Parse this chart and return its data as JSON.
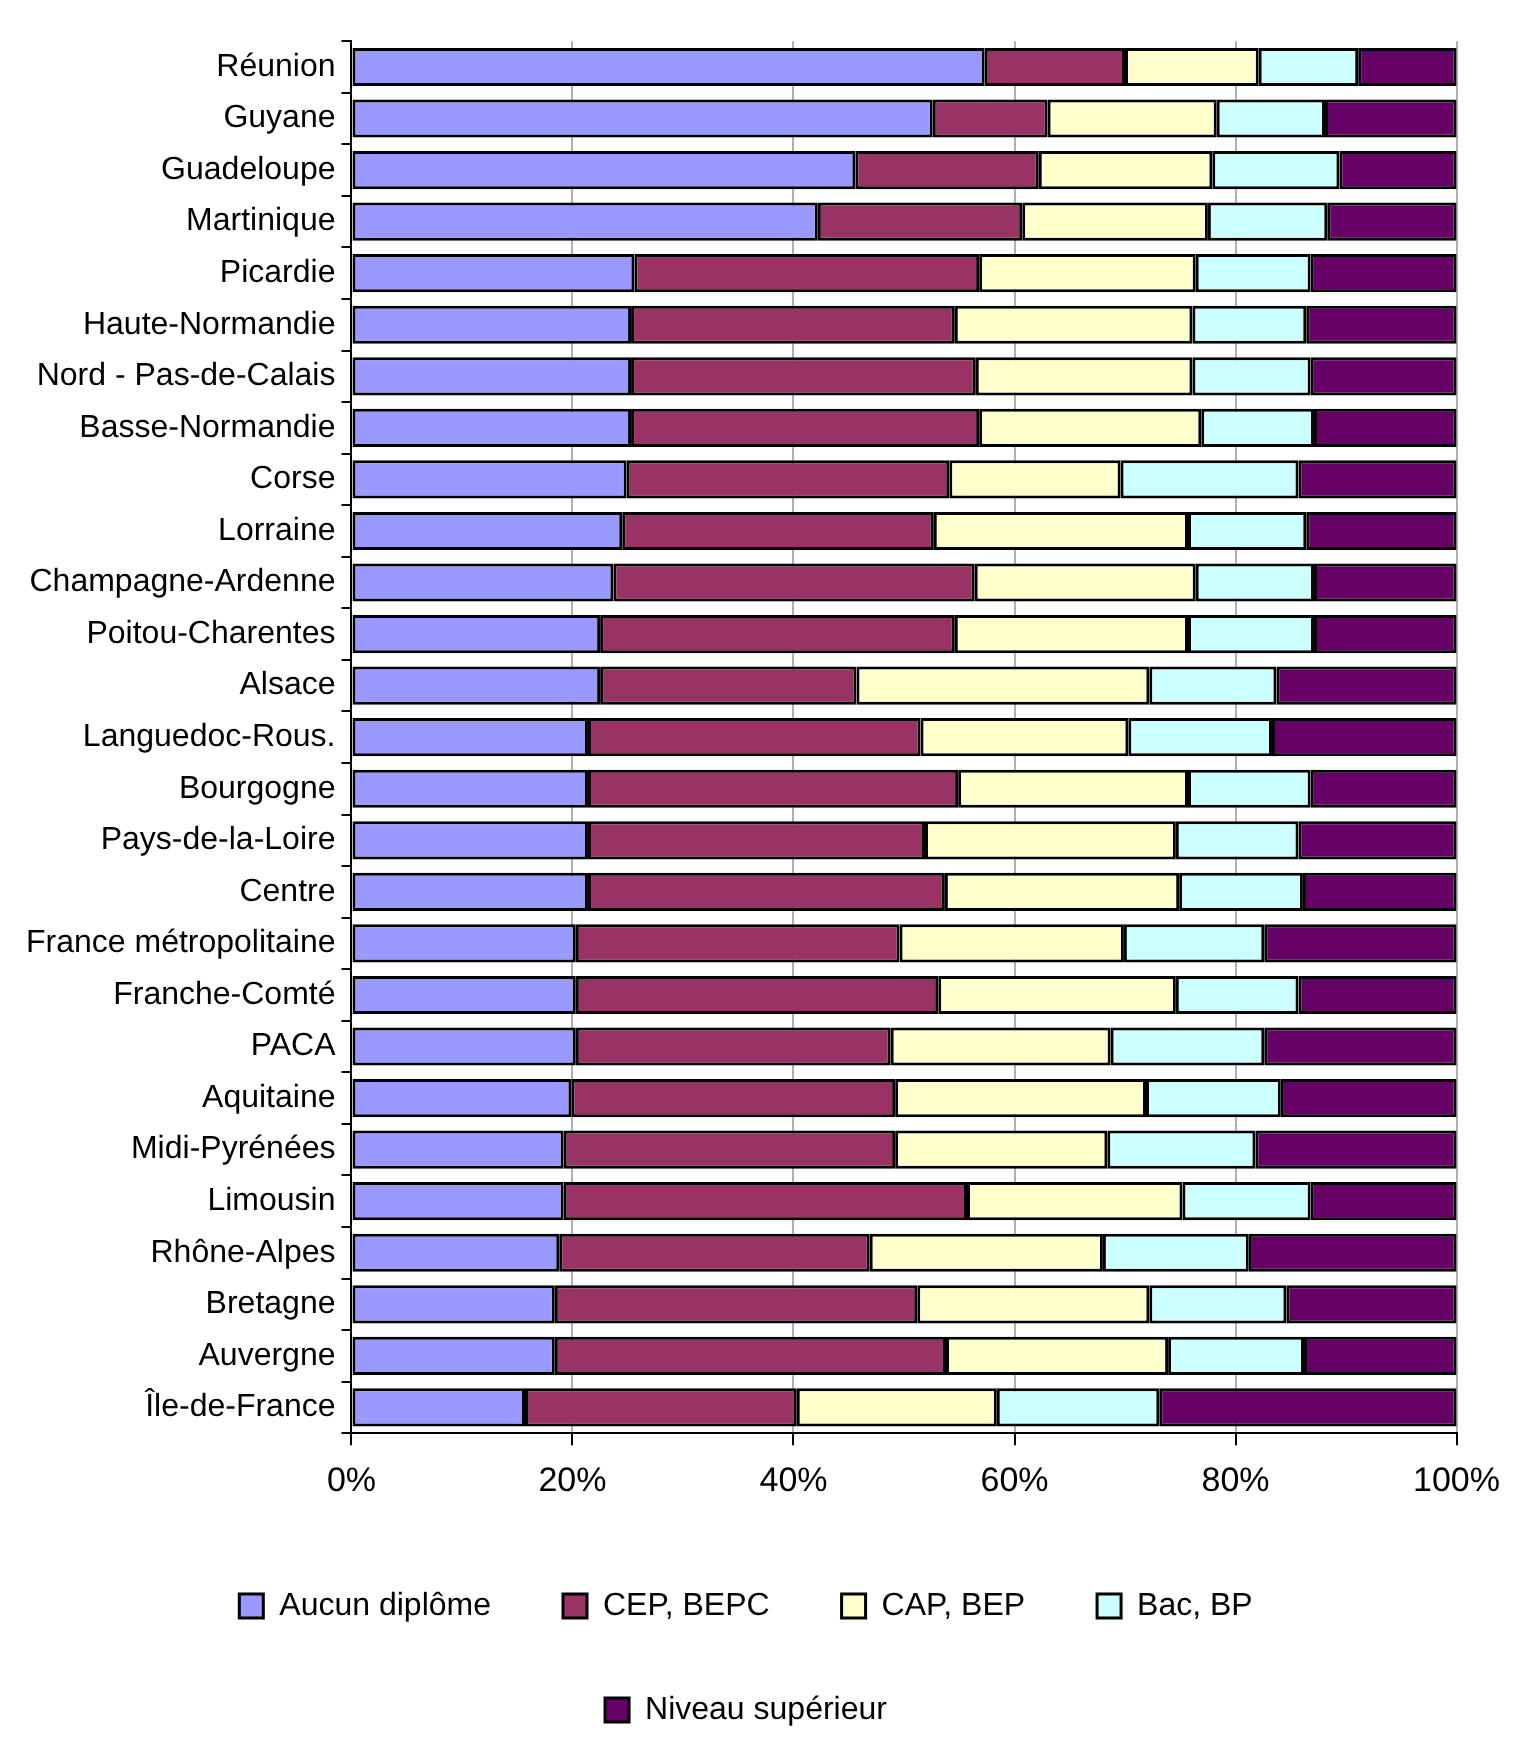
{
  "chart_data": {
    "type": "bar",
    "orientation": "horizontal",
    "stacked": true,
    "categories": [
      "Réunion",
      "Guyane",
      "Guadeloupe",
      "Martinique",
      "Picardie",
      "Haute-Normandie",
      "Nord - Pas-de-Calais",
      "Basse-Normandie",
      "Corse",
      "Lorraine",
      "Champagne-Ardenne",
      "Poitou-Charentes",
      "Alsace",
      "Languedoc-Rous.",
      "Bourgogne",
      "Pays-de-la-Loire",
      "Centre",
      "France métropolitaine",
      "Franche-Comté",
      "PACA",
      "Aquitaine",
      "Midi-Pyrénées",
      "Limousin",
      "Rhône-Alpes",
      "Bretagne",
      "Auvergne",
      "Île-de-France"
    ],
    "series": [
      {
        "name": "Aucun diplôme",
        "color": "#9999ff",
        "values": [
          57.3,
          52.6,
          45.6,
          42.2,
          25.6,
          25.3,
          25.3,
          25.3,
          24.9,
          24.5,
          23.7,
          22.5,
          22.5,
          21.4,
          21.4,
          21.4,
          21.4,
          20.3,
          20.3,
          20.3,
          19.9,
          19.2,
          19.2,
          18.8,
          18.4,
          18.4,
          15.7
        ]
      },
      {
        "name": "CEP, BEPC",
        "color": "#993366",
        "values": [
          12.7,
          10.4,
          16.6,
          18.5,
          31.2,
          29.3,
          31.2,
          31.5,
          29.2,
          28.2,
          32.7,
          32.1,
          23.2,
          30.1,
          33.5,
          30.5,
          32.3,
          29.3,
          32.8,
          28.5,
          29.3,
          30.0,
          36.5,
          28.1,
          32.8,
          35.4,
          24.6
        ]
      },
      {
        "name": "CAP, BEP",
        "color": "#ffffcc",
        "values": [
          12.1,
          15.3,
          15.7,
          16.8,
          19.6,
          21.5,
          19.6,
          20.1,
          15.5,
          23.0,
          20.0,
          21.1,
          26.5,
          18.8,
          20.8,
          22.7,
          21.2,
          20.3,
          21.5,
          19.9,
          22.7,
          19.2,
          19.5,
          21.1,
          21.0,
          20.1,
          18.1
        ]
      },
      {
        "name": "Bac, BP",
        "color": "#ccffff",
        "values": [
          9.0,
          9.8,
          11.5,
          10.8,
          10.4,
          10.3,
          10.7,
          10.2,
          16.1,
          10.7,
          10.7,
          11.4,
          11.5,
          13.0,
          11.1,
          11.1,
          11.2,
          12.7,
          11.1,
          13.9,
          12.2,
          13.4,
          11.6,
          13.2,
          12.4,
          12.3,
          14.7
        ]
      },
      {
        "name": "Niveau supérieur",
        "color": "#660066",
        "values": [
          8.9,
          11.9,
          10.6,
          11.7,
          13.2,
          13.6,
          13.2,
          12.9,
          14.3,
          13.6,
          12.9,
          12.9,
          16.3,
          16.7,
          13.2,
          14.3,
          13.9,
          17.4,
          14.3,
          17.4,
          15.9,
          18.2,
          13.2,
          18.8,
          15.4,
          13.8,
          26.9
        ]
      }
    ],
    "xlim": [
      0,
      100
    ],
    "xticks": [
      {
        "value": 0,
        "label": "0%"
      },
      {
        "value": 20,
        "label": "20%"
      },
      {
        "value": 40,
        "label": "40%"
      },
      {
        "value": 60,
        "label": "60%"
      },
      {
        "value": 80,
        "label": "80%"
      },
      {
        "value": 100,
        "label": "100%"
      }
    ],
    "grid": "x",
    "legend": "bottom"
  }
}
